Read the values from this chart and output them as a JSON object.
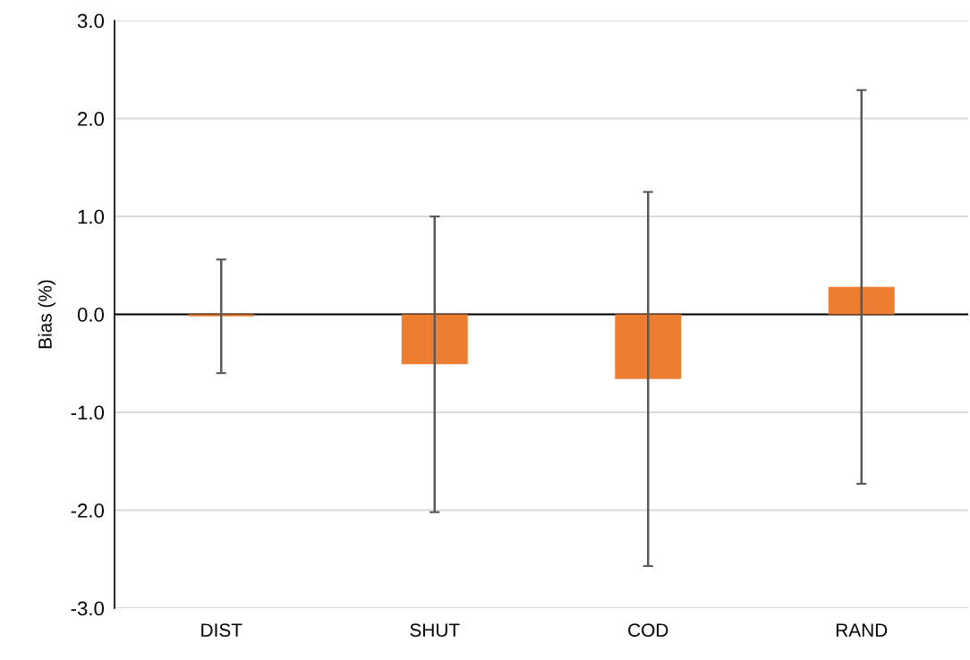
{
  "chart_data": {
    "type": "bar",
    "ylabel": "Bias (%)",
    "categories": [
      "DIST",
      "SHUT",
      "COD",
      "RAND"
    ],
    "values": [
      -0.02,
      -0.51,
      -0.66,
      0.28
    ],
    "errors": [
      0.58,
      1.51,
      1.91,
      2.01
    ],
    "color": "#ed7d31",
    "ylim": [
      -3.0,
      3.0
    ],
    "yticks": [
      {
        "value": -3.0,
        "label": "-3.0"
      },
      {
        "value": -2.0,
        "label": "-2.0"
      },
      {
        "value": -1.0,
        "label": "-1.0"
      },
      {
        "value": 0.0,
        "label": "0.0"
      },
      {
        "value": 1.0,
        "label": "1.0"
      },
      {
        "value": 2.0,
        "label": "2.0"
      },
      {
        "value": 3.0,
        "label": "3.0"
      }
    ],
    "grid": "y"
  }
}
